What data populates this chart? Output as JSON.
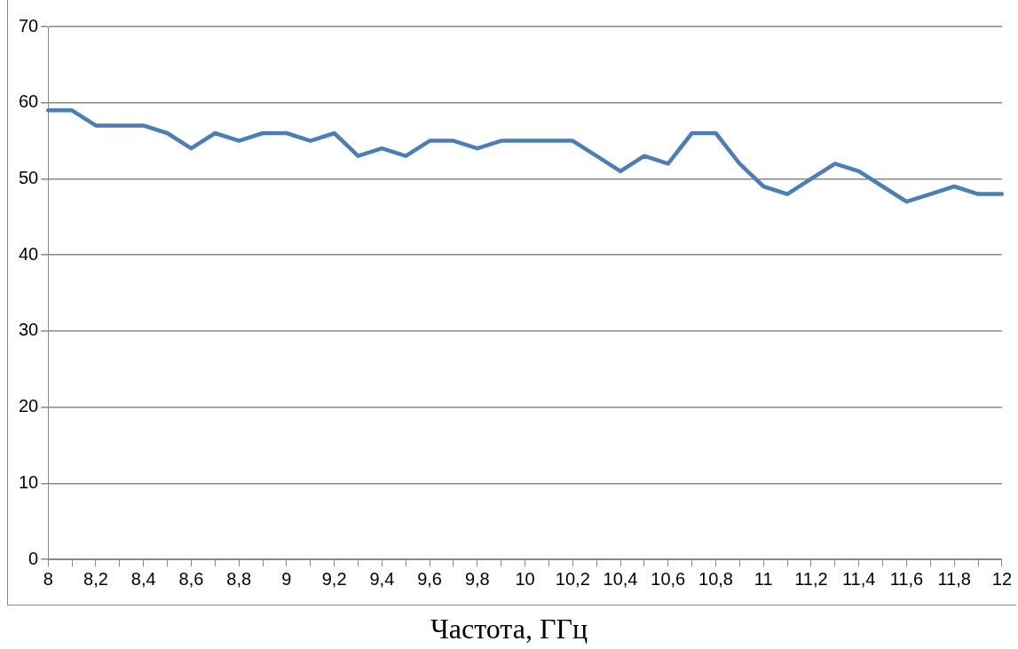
{
  "chart_data": {
    "type": "line",
    "xlabel": "Частота, ГГц",
    "categories": [
      "8",
      null,
      "8,2",
      null,
      "8,4",
      null,
      "8,6",
      null,
      "8,8",
      null,
      "9",
      null,
      "9,2",
      null,
      "9,4",
      null,
      "9,6",
      null,
      "9,8",
      null,
      "10",
      null,
      "10,2",
      null,
      "10,4",
      null,
      "10,6",
      null,
      "10,8",
      null,
      "11",
      null,
      "11,2",
      null,
      "11,4",
      null,
      "11,6",
      null,
      "11,8",
      null,
      "12"
    ],
    "series": [
      {
        "color": "#4a7ebb",
        "values": [
          59,
          59,
          57,
          57,
          57,
          56,
          54,
          56,
          55,
          56,
          56,
          55,
          56,
          53,
          54,
          53,
          55,
          55,
          54,
          55,
          55,
          55,
          55,
          53,
          51,
          53,
          52,
          56,
          56,
          52,
          49,
          48,
          50,
          52,
          51,
          49,
          47,
          48,
          49,
          48,
          48
        ]
      }
    ],
    "ylim": [
      0,
      70
    ],
    "yticks": [
      0,
      10,
      20,
      30,
      40,
      50,
      60,
      70
    ],
    "grid": "y",
    "legend": false,
    "marker": "none",
    "line_style": "solid"
  }
}
